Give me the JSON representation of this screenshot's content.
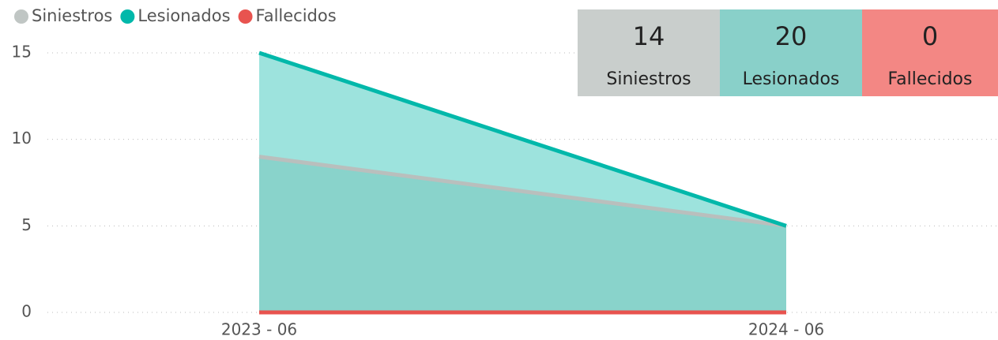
{
  "chart_data": {
    "type": "area",
    "categories": [
      "2023 - 06",
      "2024 - 06"
    ],
    "series": [
      {
        "name": "Siniestros",
        "color": "#b9bfbd",
        "legend_color": "#c0c6c4",
        "area_color": "#89d3cb",
        "values": [
          9,
          5
        ]
      },
      {
        "name": "Lesionados",
        "color": "#01b8aa",
        "legend_color": "#01b8aa",
        "area_color": "#9de3dd",
        "values": [
          15,
          5
        ]
      },
      {
        "name": "Fallecidos",
        "color": "#e8534f",
        "legend_color": "#e8534f",
        "values": [
          0,
          0
        ]
      }
    ],
    "ylim": [
      0,
      15
    ],
    "yticks": [
      0,
      5,
      10,
      15
    ],
    "grid": true,
    "cards": [
      {
        "value": 14,
        "label": "Siniestros",
        "color": "#c9cecc"
      },
      {
        "value": 20,
        "label": "Lesionados",
        "color": "#89d0c9"
      },
      {
        "value": 0,
        "label": "Fallecidos",
        "color": "#f38784"
      }
    ]
  }
}
